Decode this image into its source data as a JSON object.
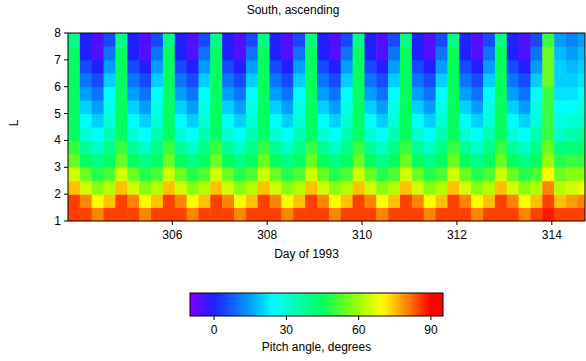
{
  "chart_data": {
    "type": "heatmap",
    "title": "South, ascending",
    "x_label": "Day of 1993",
    "y_label": "L",
    "xlim": [
      303.8,
      314.7
    ],
    "ylim": [
      1,
      8
    ],
    "xticks": [
      306,
      308,
      310,
      312,
      314
    ],
    "yticks": [
      1,
      2,
      3,
      4,
      5,
      6,
      7,
      8
    ],
    "x_edges": [
      303.8,
      304.05,
      304.3,
      304.55,
      304.8,
      305.05,
      305.3,
      305.55,
      305.8,
      306.05,
      306.3,
      306.55,
      306.8,
      307.05,
      307.3,
      307.55,
      307.8,
      308.05,
      308.3,
      308.55,
      308.8,
      309.05,
      309.3,
      309.55,
      309.8,
      310.05,
      310.3,
      310.55,
      310.8,
      311.05,
      311.3,
      311.55,
      311.8,
      312.05,
      312.3,
      312.55,
      312.8,
      313.05,
      313.3,
      313.55,
      313.8,
      314.05,
      314.3,
      314.55,
      314.8
    ],
    "y_edges": [
      1,
      1.5,
      2,
      2.5,
      3,
      3.5,
      4,
      4.5,
      5,
      5.5,
      6,
      6.5,
      7,
      7.5,
      8
    ],
    "cells": [
      [
        85,
        85,
        80,
        85,
        85,
        85,
        80,
        85,
        85,
        85,
        80,
        85,
        85,
        85,
        80,
        85,
        85,
        85,
        80,
        85,
        85,
        85,
        80,
        85,
        85,
        85,
        80,
        85,
        85,
        85,
        80,
        85,
        85,
        85,
        80,
        85,
        85,
        85,
        80,
        85,
        88,
        85,
        85,
        85
      ],
      [
        85,
        80,
        70,
        75,
        85,
        80,
        70,
        75,
        85,
        80,
        70,
        75,
        85,
        80,
        70,
        75,
        85,
        80,
        70,
        75,
        85,
        80,
        70,
        75,
        85,
        80,
        70,
        75,
        85,
        80,
        70,
        75,
        85,
        80,
        70,
        75,
        85,
        80,
        70,
        75,
        85,
        75,
        78,
        80
      ],
      [
        75,
        65,
        58,
        62,
        75,
        65,
        58,
        62,
        75,
        65,
        58,
        62,
        75,
        65,
        58,
        62,
        75,
        65,
        58,
        62,
        75,
        65,
        58,
        62,
        75,
        65,
        58,
        62,
        75,
        65,
        58,
        62,
        75,
        65,
        58,
        62,
        75,
        65,
        58,
        62,
        80,
        62,
        65,
        68
      ],
      [
        65,
        55,
        48,
        52,
        65,
        55,
        48,
        52,
        65,
        55,
        48,
        52,
        65,
        55,
        48,
        52,
        65,
        55,
        48,
        52,
        65,
        55,
        48,
        52,
        65,
        55,
        48,
        52,
        65,
        55,
        48,
        52,
        65,
        55,
        48,
        52,
        65,
        55,
        48,
        52,
        70,
        55,
        58,
        58
      ],
      [
        55,
        45,
        40,
        45,
        55,
        45,
        40,
        45,
        55,
        45,
        40,
        45,
        55,
        45,
        40,
        45,
        55,
        45,
        40,
        45,
        55,
        45,
        40,
        45,
        55,
        45,
        40,
        45,
        55,
        45,
        40,
        45,
        55,
        45,
        40,
        45,
        55,
        45,
        40,
        45,
        60,
        48,
        50,
        50
      ],
      [
        50,
        38,
        32,
        40,
        50,
        38,
        32,
        40,
        50,
        38,
        32,
        40,
        50,
        38,
        32,
        40,
        50,
        38,
        32,
        40,
        50,
        38,
        32,
        40,
        50,
        38,
        32,
        40,
        50,
        38,
        32,
        40,
        50,
        38,
        32,
        40,
        50,
        38,
        32,
        40,
        55,
        40,
        42,
        42
      ],
      [
        45,
        30,
        25,
        35,
        45,
        30,
        25,
        35,
        45,
        30,
        25,
        35,
        45,
        30,
        25,
        35,
        45,
        30,
        25,
        35,
        45,
        30,
        25,
        35,
        45,
        30,
        25,
        35,
        45,
        30,
        25,
        35,
        45,
        30,
        25,
        35,
        45,
        30,
        25,
        35,
        50,
        32,
        35,
        38
      ],
      [
        45,
        25,
        20,
        30,
        45,
        25,
        20,
        30,
        45,
        25,
        20,
        30,
        45,
        25,
        20,
        30,
        45,
        25,
        20,
        30,
        45,
        25,
        20,
        30,
        45,
        25,
        20,
        30,
        45,
        25,
        20,
        30,
        45,
        25,
        20,
        30,
        45,
        25,
        20,
        30,
        50,
        28,
        30,
        32
      ],
      [
        45,
        20,
        15,
        28,
        45,
        20,
        15,
        28,
        45,
        20,
        15,
        28,
        45,
        20,
        15,
        28,
        45,
        20,
        15,
        28,
        45,
        20,
        15,
        28,
        45,
        20,
        15,
        28,
        45,
        20,
        15,
        28,
        45,
        20,
        15,
        28,
        45,
        20,
        15,
        28,
        50,
        25,
        25,
        28
      ],
      [
        45,
        15,
        10,
        25,
        45,
        15,
        10,
        25,
        45,
        15,
        10,
        25,
        45,
        15,
        10,
        25,
        45,
        15,
        10,
        25,
        45,
        15,
        10,
        25,
        45,
        15,
        10,
        25,
        45,
        15,
        10,
        25,
        45,
        15,
        10,
        25,
        45,
        15,
        10,
        25,
        50,
        22,
        22,
        25
      ],
      [
        45,
        10,
        5,
        20,
        45,
        10,
        5,
        20,
        45,
        10,
        5,
        20,
        45,
        10,
        5,
        20,
        45,
        10,
        5,
        20,
        45,
        10,
        5,
        20,
        45,
        10,
        5,
        20,
        45,
        10,
        5,
        20,
        45,
        10,
        5,
        20,
        45,
        10,
        5,
        20,
        55,
        20,
        20,
        22
      ],
      [
        45,
        5,
        0,
        15,
        45,
        5,
        0,
        15,
        45,
        5,
        0,
        15,
        45,
        5,
        0,
        15,
        45,
        5,
        0,
        15,
        45,
        5,
        0,
        15,
        45,
        5,
        0,
        15,
        45,
        5,
        0,
        15,
        45,
        5,
        0,
        15,
        45,
        5,
        0,
        15,
        55,
        20,
        18,
        20
      ],
      [
        45,
        0,
        -5,
        10,
        45,
        0,
        -5,
        10,
        45,
        0,
        -5,
        10,
        45,
        0,
        -5,
        10,
        45,
        0,
        -5,
        10,
        45,
        0,
        -5,
        10,
        45,
        0,
        -5,
        10,
        45,
        0,
        -5,
        10,
        45,
        0,
        -5,
        10,
        45,
        0,
        -5,
        10,
        55,
        18,
        15,
        18
      ],
      [
        40,
        0,
        -5,
        5,
        40,
        0,
        -5,
        5,
        40,
        0,
        -5,
        5,
        40,
        0,
        -5,
        5,
        40,
        0,
        -5,
        5,
        40,
        0,
        -5,
        5,
        40,
        0,
        -5,
        5,
        40,
        0,
        -5,
        5,
        40,
        0,
        -5,
        5,
        40,
        0,
        -5,
        5,
        50,
        15,
        12,
        15
      ]
    ],
    "color_range": [
      -10,
      95
    ],
    "color_ticks": [
      0,
      30,
      60,
      90
    ],
    "color_label": "Pitch angle, degrees"
  }
}
